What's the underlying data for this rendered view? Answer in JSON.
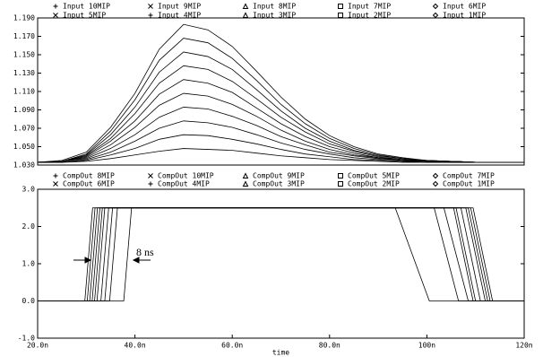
{
  "chart_data": [
    {
      "type": "line",
      "x": [
        20,
        25,
        30,
        35,
        40,
        45,
        50,
        55,
        60,
        65,
        70,
        75,
        80,
        85,
        90,
        95,
        100,
        105,
        110,
        115,
        120
      ],
      "xlim": [
        20,
        120
      ],
      "ylim": [
        1.03,
        1.19
      ],
      "yticks": [
        {
          "value": 1.03,
          "label": "1.030"
        },
        {
          "value": 1.05,
          "label": "1.050"
        },
        {
          "value": 1.07,
          "label": "1.070"
        },
        {
          "value": 1.09,
          "label": "1.090"
        },
        {
          "value": 1.11,
          "label": "1.110"
        },
        {
          "value": 1.13,
          "label": "1.130"
        },
        {
          "value": 1.15,
          "label": "1.150"
        },
        {
          "value": 1.17,
          "label": "1.170"
        },
        {
          "value": 1.19,
          "label": "1.190"
        }
      ],
      "series": [
        {
          "name": "Input 10MIP",
          "color": "#000000",
          "marker": "plus",
          "values": [
            1.033,
            1.035,
            1.044,
            1.071,
            1.108,
            1.156,
            1.183,
            1.177,
            1.159,
            1.132,
            1.104,
            1.08,
            1.062,
            1.05,
            1.042,
            1.038,
            1.035,
            1.034,
            1.033,
            1.033,
            1.033
          ]
        },
        {
          "name": "Input 9MIP",
          "color": "#000000",
          "marker": "cross",
          "values": [
            1.033,
            1.034,
            1.042,
            1.067,
            1.101,
            1.144,
            1.168,
            1.163,
            1.146,
            1.122,
            1.096,
            1.075,
            1.059,
            1.048,
            1.041,
            1.037,
            1.035,
            1.034,
            1.033,
            1.033,
            1.033
          ]
        },
        {
          "name": "Input 8MIP",
          "color": "#000000",
          "marker": "triangle",
          "values": [
            1.033,
            1.034,
            1.041,
            1.063,
            1.093,
            1.131,
            1.153,
            1.148,
            1.134,
            1.112,
            1.089,
            1.07,
            1.056,
            1.046,
            1.04,
            1.037,
            1.035,
            1.034,
            1.033,
            1.033,
            1.033
          ]
        },
        {
          "name": "Input 7MIP",
          "color": "#000000",
          "marker": "square",
          "values": [
            1.033,
            1.034,
            1.04,
            1.059,
            1.086,
            1.119,
            1.138,
            1.134,
            1.121,
            1.102,
            1.082,
            1.066,
            1.053,
            1.045,
            1.039,
            1.036,
            1.035,
            1.034,
            1.033,
            1.033,
            1.033
          ]
        },
        {
          "name": "Input 6MIP",
          "color": "#000000",
          "marker": "diamond",
          "values": [
            1.033,
            1.034,
            1.039,
            1.056,
            1.078,
            1.107,
            1.123,
            1.119,
            1.109,
            1.092,
            1.075,
            1.061,
            1.05,
            1.043,
            1.038,
            1.036,
            1.034,
            1.034,
            1.033,
            1.033,
            1.033
          ]
        },
        {
          "name": "Input 5MIP",
          "color": "#000000",
          "marker": "cross",
          "values": [
            1.033,
            1.034,
            1.038,
            1.052,
            1.071,
            1.095,
            1.108,
            1.105,
            1.096,
            1.083,
            1.068,
            1.056,
            1.047,
            1.041,
            1.038,
            1.035,
            1.034,
            1.034,
            1.033,
            1.033,
            1.033
          ]
        },
        {
          "name": "Input 4MIP",
          "color": "#000000",
          "marker": "plus",
          "values": [
            1.033,
            1.034,
            1.037,
            1.048,
            1.063,
            1.082,
            1.093,
            1.091,
            1.083,
            1.073,
            1.061,
            1.052,
            1.044,
            1.04,
            1.037,
            1.035,
            1.034,
            1.033,
            1.033,
            1.033,
            1.033
          ]
        },
        {
          "name": "Input 3MIP",
          "color": "#000000",
          "marker": "triangle",
          "values": [
            1.033,
            1.033,
            1.036,
            1.044,
            1.056,
            1.07,
            1.078,
            1.076,
            1.071,
            1.063,
            1.054,
            1.047,
            1.042,
            1.038,
            1.036,
            1.034,
            1.034,
            1.033,
            1.033,
            1.033,
            1.033
          ]
        },
        {
          "name": "Input 2MIP",
          "color": "#000000",
          "marker": "square",
          "values": [
            1.033,
            1.033,
            1.035,
            1.041,
            1.048,
            1.058,
            1.063,
            1.062,
            1.058,
            1.053,
            1.047,
            1.042,
            1.039,
            1.036,
            1.035,
            1.034,
            1.033,
            1.033,
            1.033,
            1.033,
            1.033
          ]
        },
        {
          "name": "Input 1MIP",
          "color": "#000000",
          "marker": "diamond",
          "values": [
            1.033,
            1.033,
            1.034,
            1.037,
            1.041,
            1.045,
            1.048,
            1.047,
            1.046,
            1.043,
            1.04,
            1.038,
            1.036,
            1.035,
            1.034,
            1.033,
            1.033,
            1.033,
            1.033,
            1.033,
            1.033
          ]
        }
      ]
    },
    {
      "type": "line",
      "xlabel": "time",
      "xlim": [
        20,
        120
      ],
      "xticks": [
        {
          "value": 20,
          "label": "20.0n"
        },
        {
          "value": 40,
          "label": "40.0n"
        },
        {
          "value": 60,
          "label": "60.0n"
        },
        {
          "value": 80,
          "label": "80.0n"
        },
        {
          "value": 100,
          "label": "100n"
        },
        {
          "value": 120,
          "label": "120n"
        }
      ],
      "ylim": [
        -1,
        3
      ],
      "yticks": [
        {
          "value": -1,
          "label": "-1.0"
        },
        {
          "value": 0,
          "label": "0.0"
        },
        {
          "value": 1,
          "label": "1.0"
        },
        {
          "value": 2,
          "label": "2.0"
        },
        {
          "value": 3,
          "label": "3.0"
        }
      ],
      "annotation": "8 ns",
      "series": [
        {
          "name": "CompOut 8MIP",
          "color": "#000000",
          "marker": "plus",
          "x": [
            20,
            30.7,
            31.5,
            32.3,
            108.5,
            110.5,
            112.5,
            120
          ],
          "values": [
            0,
            0,
            1.25,
            2.5,
            2.5,
            1.25,
            0,
            0
          ]
        },
        {
          "name": "CompOut 10MIP",
          "color": "#000000",
          "marker": "cross",
          "x": [
            20,
            29.7,
            30.5,
            31.3,
            109.5,
            111.5,
            113.5,
            120
          ],
          "values": [
            0,
            0,
            1.25,
            2.5,
            2.5,
            1.25,
            0,
            0
          ]
        },
        {
          "name": "CompOut 9MIP",
          "color": "#000000",
          "marker": "triangle",
          "x": [
            20,
            30.2,
            31,
            31.8,
            109,
            111,
            113,
            120
          ],
          "values": [
            0,
            0,
            1.25,
            2.5,
            2.5,
            1.25,
            0,
            0
          ]
        },
        {
          "name": "CompOut 5MIP",
          "color": "#000000",
          "marker": "square",
          "x": [
            20,
            32.2,
            33,
            33.8,
            106,
            108,
            110,
            120
          ],
          "values": [
            0,
            0,
            1.25,
            2.5,
            2.5,
            1.25,
            0,
            0
          ]
        },
        {
          "name": "CompOut 7MIP",
          "color": "#000000",
          "marker": "diamond",
          "x": [
            20,
            31.2,
            32,
            32.8,
            108,
            110,
            112,
            120
          ],
          "values": [
            0,
            0,
            1.25,
            2.5,
            2.5,
            1.25,
            0,
            0
          ]
        },
        {
          "name": "CompOut 6MIP",
          "color": "#000000",
          "marker": "cross",
          "x": [
            20,
            31.7,
            32.5,
            33.3,
            107,
            109,
            111,
            120
          ],
          "values": [
            0,
            0,
            1.25,
            2.5,
            2.5,
            1.25,
            0,
            0
          ]
        },
        {
          "name": "CompOut 4MIP",
          "color": "#000000",
          "marker": "plus",
          "x": [
            20,
            33,
            33.8,
            34.6,
            105.5,
            107.5,
            109.5,
            120
          ],
          "values": [
            0,
            0,
            1.25,
            2.5,
            2.5,
            1.25,
            0,
            0
          ]
        },
        {
          "name": "CompOut 3MIP",
          "color": "#000000",
          "marker": "triangle",
          "x": [
            20,
            33.8,
            34.6,
            35.4,
            103.5,
            106,
            108.5,
            120
          ],
          "values": [
            0,
            0,
            1.25,
            2.5,
            2.5,
            1.25,
            0,
            0
          ]
        },
        {
          "name": "CompOut 2MIP",
          "color": "#000000",
          "marker": "square",
          "x": [
            20,
            34.8,
            35.6,
            36.4,
            101.5,
            104,
            106.5,
            120
          ],
          "values": [
            0,
            0,
            1.25,
            2.5,
            2.5,
            1.25,
            0,
            0
          ]
        },
        {
          "name": "CompOut 1MIP",
          "color": "#000000",
          "marker": "diamond",
          "x": [
            20,
            37.7,
            38.5,
            39.3,
            93.5,
            97,
            100.5,
            120
          ],
          "values": [
            0,
            0,
            1.25,
            2.5,
            2.5,
            1.25,
            0,
            0
          ]
        }
      ]
    }
  ]
}
